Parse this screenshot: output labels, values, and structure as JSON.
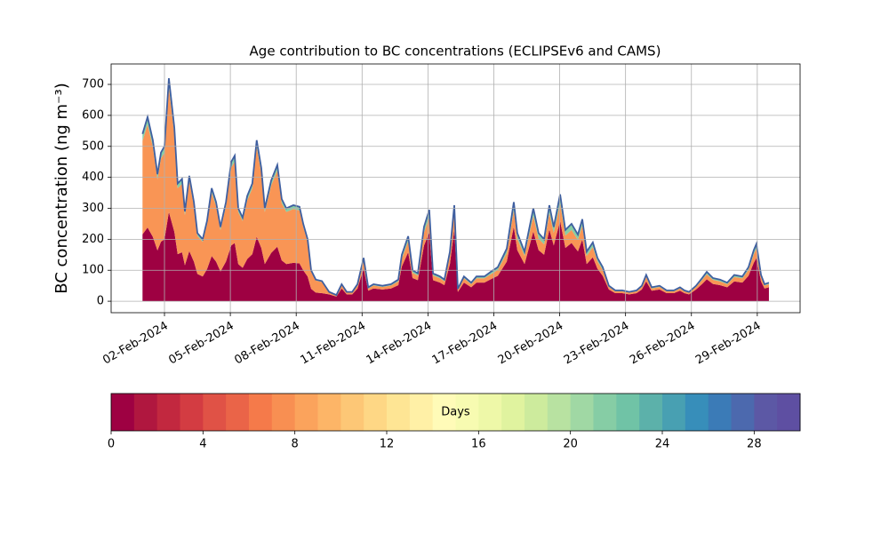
{
  "chart_data": {
    "type": "stacked_area",
    "title": "Age contribution to BC concentrations (ECLIPSEv6 and CAMS)",
    "y_label": "BC concentration (ng m⁻³)",
    "x": [
      1.0,
      1.23,
      1.47,
      1.68,
      1.84,
      2.0,
      2.2,
      2.45,
      2.6,
      2.8,
      2.93,
      3.13,
      3.34,
      3.5,
      3.74,
      3.94,
      4.15,
      4.35,
      4.55,
      4.8,
      5.04,
      5.2,
      5.36,
      5.56,
      5.77,
      6.0,
      6.2,
      6.41,
      6.57,
      6.86,
      7.14,
      7.34,
      7.55,
      7.87,
      8.15,
      8.32,
      8.52,
      8.68,
      8.89,
      9.17,
      9.5,
      9.83,
      10.07,
      10.3,
      10.55,
      10.79,
      11.07,
      11.28,
      11.52,
      11.93,
      12.32,
      12.65,
      12.81,
      13.1,
      13.3,
      13.54,
      13.82,
      14.06,
      14.23,
      14.55,
      14.75,
      15.0,
      15.2,
      15.36,
      15.64,
      15.97,
      16.21,
      16.57,
      16.86,
      17.18,
      17.59,
      17.91,
      18.07,
      18.4,
      18.8,
      19.04,
      19.29,
      19.53,
      19.73,
      20.02,
      20.26,
      20.54,
      20.83,
      21.03,
      21.23,
      21.51,
      21.72,
      21.96,
      22.24,
      22.53,
      22.85,
      23.17,
      23.5,
      23.74,
      23.94,
      24.19,
      24.55,
      24.87,
      25.2,
      25.48,
      25.68,
      25.89,
      26.21,
      26.49,
      26.7,
      26.98,
      27.3,
      27.63,
      27.95,
      28.32,
      28.6,
      28.84,
      28.96,
      29.17,
      29.33,
      29.53
    ],
    "series": [
      {
        "color": "#9e0142",
        "values": [
          216,
          238,
          208,
          164,
          192,
          200,
          288,
          224,
          152,
          158,
          116,
          162,
          128,
          88,
          80,
          104,
          146,
          128,
          96,
          128,
          180,
          188,
          120,
          108,
          136,
          152,
          208,
          172,
          120,
          156,
          176,
          132,
          120,
          124,
          122,
          100,
          80,
          40,
          28,
          26,
          22,
          15,
          41,
          22,
          22,
          41,
          105,
          34,
          41,
          38,
          41,
          52,
          112,
          158,
          75,
          68,
          180,
          221,
          68,
          60,
          52,
          120,
          232,
          30,
          60,
          45,
          60,
          60,
          71,
          82,
          128,
          240,
          165,
          120,
          225,
          165,
          150,
          232,
          180,
          259,
          172,
          188,
          161,
          199,
          120,
          142,
          105,
          82,
          38,
          26,
          26,
          22,
          26,
          38,
          64,
          34,
          38,
          26,
          26,
          34,
          26,
          22,
          38,
          56,
          71,
          56,
          52,
          45,
          64,
          60,
          82,
          124,
          139,
          64,
          41,
          45
        ]
      },
      {
        "color": "#f99555",
        "values": [
          302,
          333,
          291,
          230,
          269,
          280,
          403,
          314,
          213,
          221,
          162,
          227,
          179,
          123,
          112,
          146,
          204,
          179,
          134,
          179,
          252,
          263,
          168,
          151,
          190,
          213,
          291,
          241,
          168,
          218,
          246,
          185,
          168,
          174,
          171,
          140,
          112,
          56,
          39,
          36,
          6,
          3,
          10,
          6,
          6,
          10,
          24,
          7,
          10,
          8,
          10,
          12,
          26,
          35,
          17,
          15,
          41,
          50,
          15,
          14,
          12,
          27,
          53,
          7,
          14,
          10,
          14,
          14,
          16,
          19,
          28,
          54,
          37,
          27,
          51,
          37,
          34,
          53,
          41,
          58,
          40,
          42,
          37,
          45,
          27,
          33,
          24,
          19,
          8,
          6,
          6,
          6,
          6,
          8,
          14,
          7,
          8,
          6,
          6,
          7,
          6,
          6,
          8,
          13,
          16,
          13,
          12,
          10,
          14,
          14,
          19,
          28,
          31,
          14,
          10,
          10
        ]
      },
      {
        "color": "#86cda5",
        "values": [
          22,
          24,
          21,
          16,
          19,
          20,
          29,
          22,
          15,
          16,
          12,
          16,
          13,
          9,
          8,
          10,
          15,
          13,
          10,
          13,
          18,
          19,
          12,
          11,
          14,
          15,
          21,
          17,
          12,
          16,
          18,
          13,
          12,
          12,
          12,
          10,
          8,
          4,
          3,
          3,
          2,
          2,
          4,
          2,
          2,
          4,
          11,
          4,
          4,
          4,
          4,
          6,
          12,
          17,
          8,
          7,
          19,
          24,
          7,
          6,
          6,
          13,
          25,
          3,
          6,
          5,
          6,
          6,
          8,
          9,
          14,
          26,
          18,
          13,
          24,
          18,
          16,
          25,
          19,
          28,
          18,
          20,
          17,
          21,
          13,
          15,
          11,
          9,
          4,
          3,
          3,
          2,
          3,
          4,
          7,
          4,
          4,
          3,
          3,
          4,
          3,
          2,
          4,
          6,
          8,
          6,
          6,
          5,
          7,
          6,
          9,
          13,
          15,
          7,
          4,
          5
        ]
      }
    ],
    "line_color": "#3f5fa0",
    "xlim": [
      -0.43,
      30.95
    ],
    "xticks": [
      {
        "value": 2,
        "label": "02-Feb-2024"
      },
      {
        "value": 5,
        "label": "05-Feb-2024"
      },
      {
        "value": 8,
        "label": "08-Feb-2024"
      },
      {
        "value": 11,
        "label": "11-Feb-2024"
      },
      {
        "value": 14,
        "label": "14-Feb-2024"
      },
      {
        "value": 17,
        "label": "17-Feb-2024"
      },
      {
        "value": 20,
        "label": "20-Feb-2024"
      },
      {
        "value": 23,
        "label": "23-Feb-2024"
      },
      {
        "value": 26,
        "label": "26-Feb-2024"
      },
      {
        "value": 29,
        "label": "29-Feb-2024"
      }
    ],
    "ylim": [
      -37,
      766
    ],
    "yticks": [
      0,
      100,
      200,
      300,
      400,
      500,
      600,
      700
    ],
    "grid": true,
    "colorbar": {
      "label": "Days",
      "lim": [
        0,
        30
      ],
      "ticks": [
        0,
        4,
        8,
        12,
        16,
        20,
        24,
        28
      ],
      "colors": [
        "#9e0142",
        "#b0173f",
        "#c2283f",
        "#d33c42",
        "#e05246",
        "#ea6448",
        "#f57a4a",
        "#f88f52",
        "#fba35c",
        "#fdb567",
        "#fdc776",
        "#fed785",
        "#fee594",
        "#fff0a6",
        "#fffbb8",
        "#f7fbb1",
        "#eef8a8",
        "#e0f39f",
        "#cdeb9d",
        "#b8e2a1",
        "#a0d8a4",
        "#86cda5",
        "#70c3a6",
        "#5cb1aa",
        "#48a0b2",
        "#378eba",
        "#3b7bb7",
        "#4c69ae",
        "#5c58a5",
        "#5e4fa2"
      ]
    }
  }
}
